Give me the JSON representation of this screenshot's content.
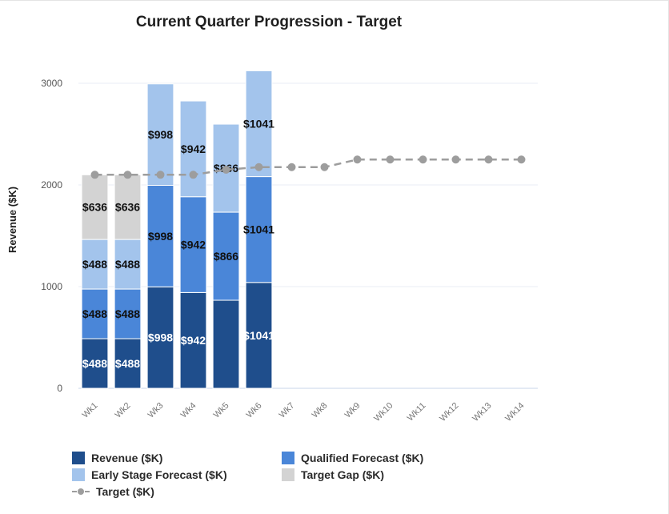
{
  "chart_data": {
    "type": "bar",
    "stacked": true,
    "title": "Current Quarter Progression - Target",
    "xlabel": "",
    "ylabel": "Revenue ($K)",
    "ylim": [
      0,
      3000
    ],
    "yticks": [
      0,
      1000,
      2000,
      3000
    ],
    "grid": true,
    "legend_position": "bottom-left",
    "categories": [
      "Wk1",
      "Wk2",
      "Wk3",
      "Wk4",
      "Wk5",
      "Wk6",
      "Wk7",
      "Wk8",
      "Wk9",
      "Wk10",
      "Wk11",
      "Wk12",
      "Wk13",
      "Wk14"
    ],
    "series": [
      {
        "name": "Revenue ($K)",
        "color": "#1f4e8c",
        "label_color": "#ffffff",
        "values": [
          488,
          488,
          998,
          942,
          866,
          1041,
          null,
          null,
          null,
          null,
          null,
          null,
          null,
          null
        ],
        "labels": [
          "$488",
          "$488",
          "$998",
          "$942",
          "",
          "$1041",
          "",
          "",
          "",
          "",
          "",
          "",
          "",
          ""
        ]
      },
      {
        "name": "Qualified Forecast ($K)",
        "color": "#4a86d8",
        "label_color": "#111111",
        "values": [
          488,
          488,
          998,
          942,
          866,
          1041,
          null,
          null,
          null,
          null,
          null,
          null,
          null,
          null
        ],
        "labels": [
          "$488",
          "$488",
          "$998",
          "$942",
          "$866",
          "$1041",
          "",
          "",
          "",
          "",
          "",
          "",
          "",
          ""
        ]
      },
      {
        "name": "Early Stage Forecast ($K)",
        "color": "#a3c4ec",
        "label_color": "#111111",
        "values": [
          488,
          488,
          998,
          942,
          866,
          1041,
          null,
          null,
          null,
          null,
          null,
          null,
          null,
          null
        ],
        "labels": [
          "$488",
          "$488",
          "$998",
          "$942",
          "$866",
          "$1041",
          "",
          "",
          "",
          "",
          "",
          "",
          "",
          ""
        ]
      },
      {
        "name": "Target Gap ($K)",
        "color": "#d3d3d3",
        "label_color": "#111111",
        "values": [
          636,
          636,
          null,
          null,
          null,
          null,
          null,
          null,
          null,
          null,
          null,
          null,
          null,
          null
        ],
        "labels": [
          "$636",
          "$636",
          "",
          "",
          "",
          "",
          "",
          "",
          "",
          "",
          "",
          "",
          "",
          ""
        ]
      }
    ],
    "line_series": {
      "name": "Target ($K)",
      "color": "#9d9d9d",
      "style": "dashed",
      "values": [
        2100,
        2100,
        2100,
        2100,
        2150,
        2175,
        2175,
        2175,
        2250,
        2250,
        2250,
        2250,
        2250,
        2250
      ]
    }
  }
}
